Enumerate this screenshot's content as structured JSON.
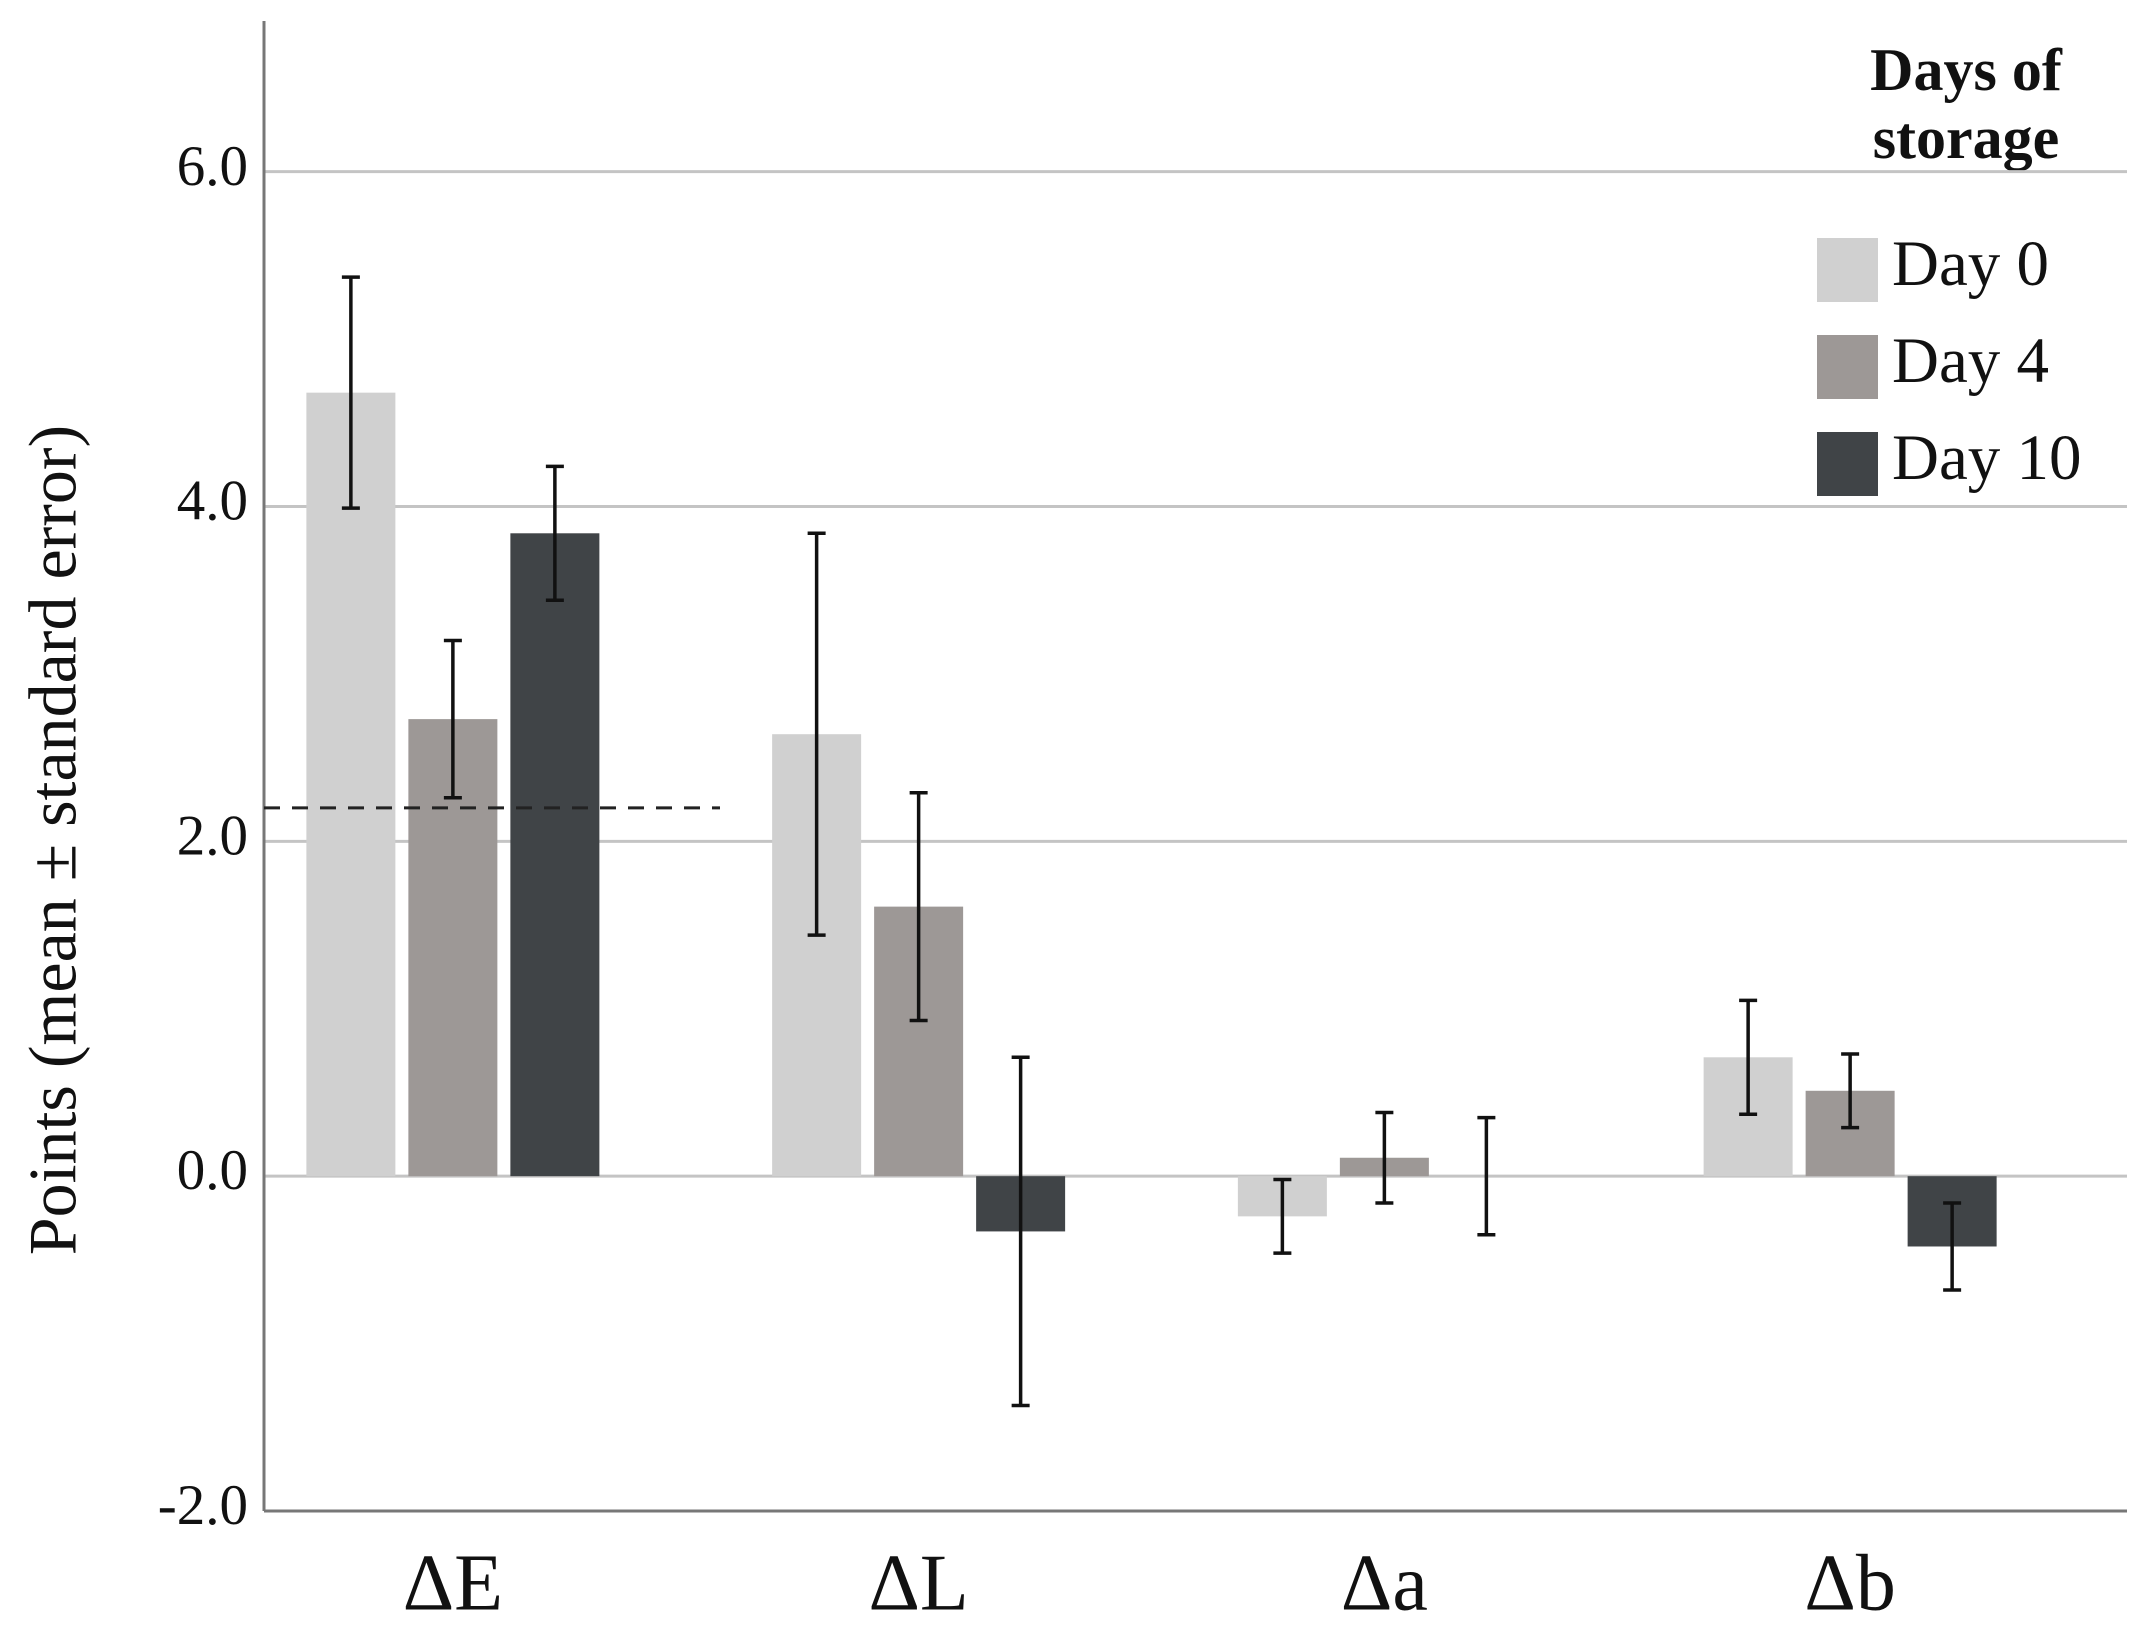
{
  "chart_data": {
    "type": "bar",
    "y_label": "Points (mean ± standard error)",
    "legend_title": [
      "Days of",
      "storage"
    ],
    "categories": [
      "ΔE",
      "ΔL",
      "Δa",
      "Δb"
    ],
    "series": [
      {
        "name": "Day 0",
        "color": "#d0d0d0",
        "values": [
          4.68,
          2.64,
          -0.24,
          0.71
        ],
        "errors": [
          0.69,
          1.2,
          0.22,
          0.34
        ]
      },
      {
        "name": "Day 4",
        "color": "#9d9896",
        "values": [
          2.73,
          1.61,
          0.11,
          0.51
        ],
        "errors": [
          0.47,
          0.68,
          0.27,
          0.22
        ]
      },
      {
        "name": "Day 10",
        "color": "#404447",
        "values": [
          3.84,
          -0.33,
          0.0,
          -0.42
        ],
        "errors": [
          0.4,
          1.04,
          0.35,
          0.26
        ]
      }
    ],
    "reference_line": 2.2,
    "ylim": [
      -2,
      6.9
    ],
    "yticks": [
      {
        "value": -2,
        "label": "-2.0"
      },
      {
        "value": 0,
        "label": "0.0"
      },
      {
        "value": 2,
        "label": "2.0"
      },
      {
        "value": 4,
        "label": "4.0"
      },
      {
        "value": 6,
        "label": "6.0"
      }
    ],
    "grid": true
  }
}
